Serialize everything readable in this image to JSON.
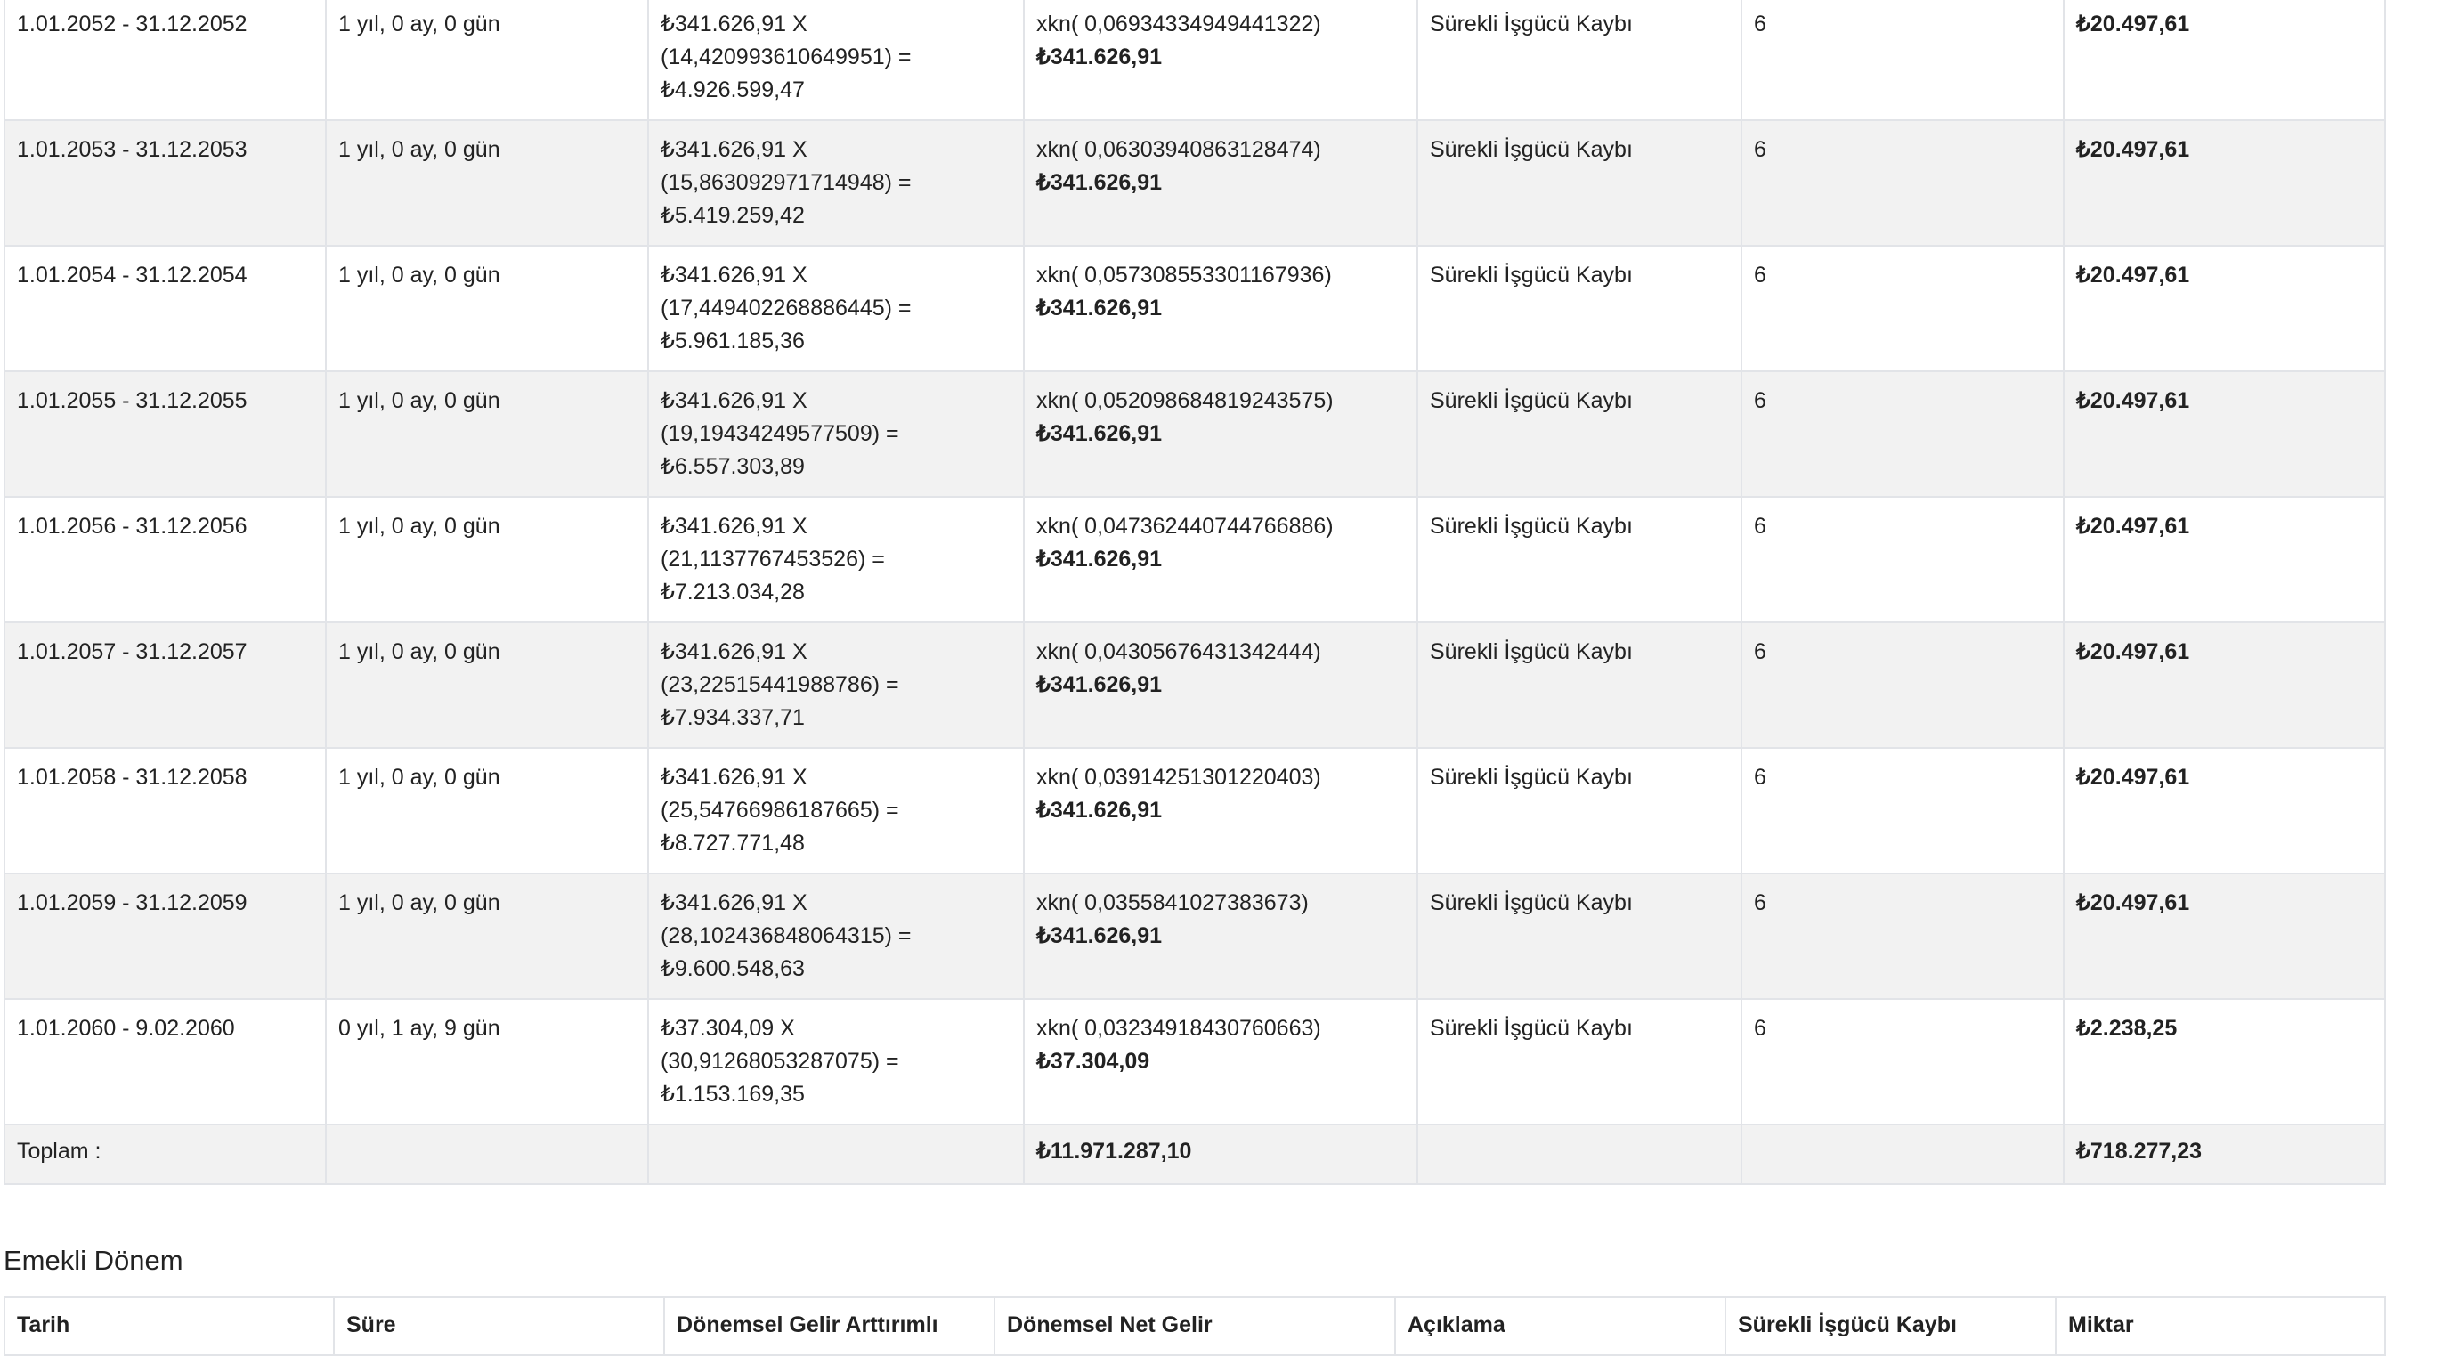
{
  "table1": {
    "rows": [
      {
        "tarih": "1.01.2052 - 31.12.2052",
        "sure": "1 yıl, 0 ay, 0 gün",
        "artt_1": "₺341.626,91 X",
        "artt_2": "(14,420993610649951) =",
        "artt_3": "₺4.926.599,47",
        "net_1": "xkn( 0,06934334949441322)",
        "net_2": "₺341.626,91",
        "aciklama": "Sürekli İşgücü Kaybı",
        "kayip": "6",
        "miktar": "₺20.497,61"
      },
      {
        "tarih": "1.01.2053 - 31.12.2053",
        "sure": "1 yıl, 0 ay, 0 gün",
        "artt_1": "₺341.626,91 X",
        "artt_2": "(15,863092971714948) =",
        "artt_3": "₺5.419.259,42",
        "net_1": "xkn( 0,06303940863128474)",
        "net_2": "₺341.626,91",
        "aciklama": "Sürekli İşgücü Kaybı",
        "kayip": "6",
        "miktar": "₺20.497,61"
      },
      {
        "tarih": "1.01.2054 - 31.12.2054",
        "sure": "1 yıl, 0 ay, 0 gün",
        "artt_1": "₺341.626,91 X",
        "artt_2": "(17,449402268886445) =",
        "artt_3": "₺5.961.185,36",
        "net_1": "xkn( 0,057308553301167936)",
        "net_2": "₺341.626,91",
        "aciklama": "Sürekli İşgücü Kaybı",
        "kayip": "6",
        "miktar": "₺20.497,61"
      },
      {
        "tarih": "1.01.2055 - 31.12.2055",
        "sure": "1 yıl, 0 ay, 0 gün",
        "artt_1": "₺341.626,91 X",
        "artt_2": "(19,19434249577509) =",
        "artt_3": "₺6.557.303,89",
        "net_1": "xkn( 0,052098684819243575)",
        "net_2": "₺341.626,91",
        "aciklama": "Sürekli İşgücü Kaybı",
        "kayip": "6",
        "miktar": "₺20.497,61"
      },
      {
        "tarih": "1.01.2056 - 31.12.2056",
        "sure": "1 yıl, 0 ay, 0 gün",
        "artt_1": "₺341.626,91 X",
        "artt_2": "(21,1137767453526) =",
        "artt_3": "₺7.213.034,28",
        "net_1": "xkn( 0,047362440744766886)",
        "net_2": "₺341.626,91",
        "aciklama": "Sürekli İşgücü Kaybı",
        "kayip": "6",
        "miktar": "₺20.497,61"
      },
      {
        "tarih": "1.01.2057 - 31.12.2057",
        "sure": "1 yıl, 0 ay, 0 gün",
        "artt_1": "₺341.626,91 X",
        "artt_2": "(23,22515441988786) =",
        "artt_3": "₺7.934.337,71",
        "net_1": "xkn( 0,04305676431342444)",
        "net_2": "₺341.626,91",
        "aciklama": "Sürekli İşgücü Kaybı",
        "kayip": "6",
        "miktar": "₺20.497,61"
      },
      {
        "tarih": "1.01.2058 - 31.12.2058",
        "sure": "1 yıl, 0 ay, 0 gün",
        "artt_1": "₺341.626,91 X",
        "artt_2": "(25,54766986187665) =",
        "artt_3": "₺8.727.771,48",
        "net_1": "xkn( 0,03914251301220403)",
        "net_2": "₺341.626,91",
        "aciklama": "Sürekli İşgücü Kaybı",
        "kayip": "6",
        "miktar": "₺20.497,61"
      },
      {
        "tarih": "1.01.2059 - 31.12.2059",
        "sure": "1 yıl, 0 ay, 0 gün",
        "artt_1": "₺341.626,91 X",
        "artt_2": "(28,102436848064315) =",
        "artt_3": "₺9.600.548,63",
        "net_1": "xkn( 0,0355841027383673)",
        "net_2": "₺341.626,91",
        "aciklama": "Sürekli İşgücü Kaybı",
        "kayip": "6",
        "miktar": "₺20.497,61"
      },
      {
        "tarih": "1.01.2060 - 9.02.2060",
        "sure": "0 yıl, 1 ay, 9 gün",
        "artt_1": "₺37.304,09 X",
        "artt_2": "(30,91268053287075) =",
        "artt_3": "₺1.153.169,35",
        "net_1": "xkn( 0,03234918430760663)",
        "net_2": "₺37.304,09",
        "aciklama": "Sürekli İşgücü Kaybı",
        "kayip": "6",
        "miktar": "₺2.238,25"
      }
    ],
    "total": {
      "label": "Toplam :",
      "net": "₺11.971.287,10",
      "miktar": "₺718.277,23"
    }
  },
  "section2": {
    "title": "Emekli Dönem",
    "headers": [
      "Tarih",
      "Süre",
      "Dönemsel Gelir Arttırımlı",
      "Dönemsel Net Gelir",
      "Açıklama",
      "Sürekli İşgücü Kaybı",
      "Miktar"
    ]
  }
}
